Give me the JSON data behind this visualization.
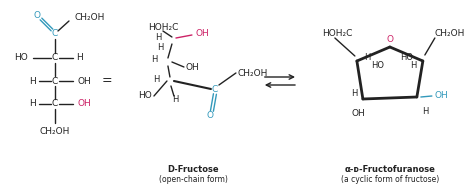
{
  "bg_color": "#ffffff",
  "black": "#222222",
  "cyan": "#3399bb",
  "pink": "#cc2266",
  "label1": "D-Fructose",
  "label1_sub": "(open-chain form)",
  "label2": "α-ᴅ-Fructofuranose",
  "label2_sub": "(a cyclic form of fructose)"
}
